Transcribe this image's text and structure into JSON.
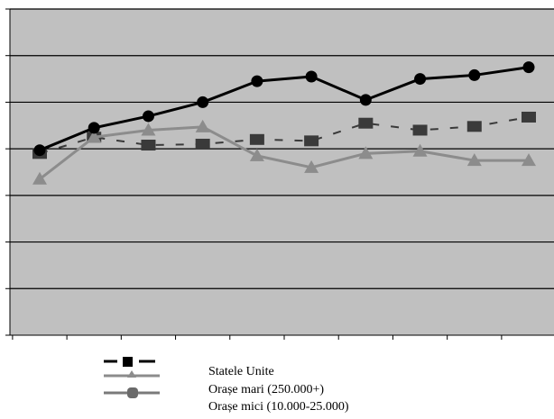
{
  "chart_data": {
    "type": "line",
    "title": "",
    "xlabel": "",
    "ylabel": "",
    "ylim": [
      0,
      7
    ],
    "grid": true,
    "legend_position": "bottom",
    "x": [
      1,
      2,
      3,
      4,
      5,
      6,
      7,
      8,
      9,
      10
    ],
    "series": [
      {
        "name": "Statele Unite",
        "values": [
          3.9,
          4.25,
          4.08,
          4.1,
          4.2,
          4.17,
          4.55,
          4.4,
          4.48,
          4.68
        ],
        "marker": "square",
        "style": "dashed",
        "color": "#3a3a3a"
      },
      {
        "name": "Orașe mari (250.000+)",
        "values": [
          3.35,
          4.25,
          4.4,
          4.47,
          3.85,
          3.6,
          3.9,
          3.95,
          3.75,
          3.75
        ],
        "marker": "triangle",
        "style": "solid",
        "color": "#8c8c8c"
      },
      {
        "name": "Orașe mici (10.000-25.000)",
        "values": [
          3.97,
          4.45,
          4.7,
          5.0,
          5.45,
          5.55,
          5.05,
          5.5,
          5.58,
          5.75
        ],
        "marker": "circle",
        "style": "solid",
        "color": "#000000"
      }
    ]
  },
  "colors": {
    "plot_background": "#c0c0c0",
    "gridline": "#000000"
  },
  "legend": {
    "items": [
      {
        "label": "Statele Unite"
      },
      {
        "label": "Orașe mari (250.000+)"
      },
      {
        "label": "Orașe mici (10.000-25.000)"
      }
    ]
  }
}
